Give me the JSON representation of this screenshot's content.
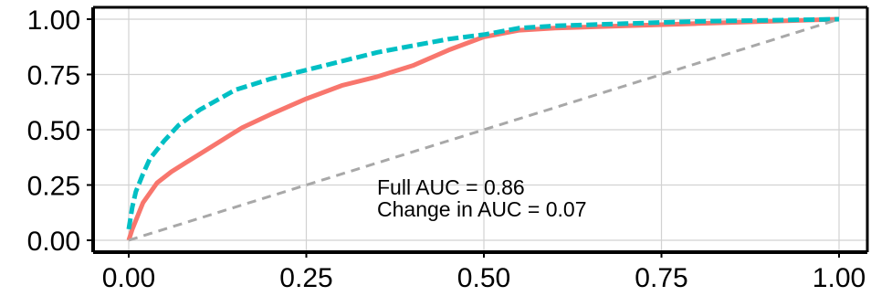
{
  "chart_data": {
    "type": "line",
    "title": "",
    "xlabel": "",
    "ylabel": "",
    "xlim": [
      0,
      1
    ],
    "ylim": [
      0,
      1
    ],
    "x_ticks": [
      "0.00",
      "0.25",
      "0.50",
      "0.75",
      "1.00"
    ],
    "y_ticks": [
      "0.00",
      "0.25",
      "0.50",
      "0.75",
      "1.00"
    ],
    "grid": true,
    "legend": "none",
    "annotations": [
      "Full AUC = 0.86",
      "Change in AUC = 0.07"
    ],
    "series": [
      {
        "color": "#F8766D",
        "line": "solid",
        "x": [
          0,
          0.005,
          0.02,
          0.04,
          0.06,
          0.08,
          0.1,
          0.13,
          0.16,
          0.2,
          0.25,
          0.3,
          0.35,
          0.4,
          0.45,
          0.5,
          0.55,
          0.6,
          0.7,
          0.8,
          0.9,
          1.0
        ],
        "y": [
          0,
          0.05,
          0.17,
          0.26,
          0.31,
          0.35,
          0.39,
          0.45,
          0.51,
          0.57,
          0.64,
          0.7,
          0.74,
          0.79,
          0.86,
          0.92,
          0.95,
          0.96,
          0.97,
          0.98,
          0.99,
          1.0
        ]
      },
      {
        "color": "#00BFC4",
        "line": "dashed",
        "x": [
          0,
          0.005,
          0.01,
          0.02,
          0.03,
          0.05,
          0.07,
          0.1,
          0.15,
          0.2,
          0.25,
          0.3,
          0.35,
          0.4,
          0.45,
          0.5,
          0.55,
          0.6,
          0.7,
          0.8,
          0.9,
          1.0
        ],
        "y": [
          0.05,
          0.15,
          0.22,
          0.3,
          0.37,
          0.45,
          0.52,
          0.59,
          0.68,
          0.73,
          0.77,
          0.81,
          0.85,
          0.88,
          0.91,
          0.93,
          0.96,
          0.97,
          0.98,
          0.99,
          0.995,
          1.0
        ]
      },
      {
        "color": "#A8A8A8",
        "line": "dashed",
        "x": [
          0,
          1
        ],
        "y": [
          0,
          1
        ]
      }
    ]
  }
}
